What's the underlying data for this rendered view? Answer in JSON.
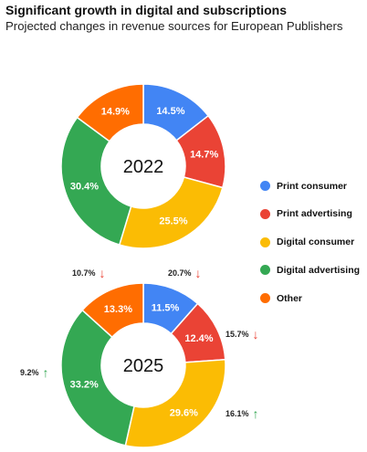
{
  "header": {
    "title": "Significant growth in digital and subscriptions",
    "subtitle": "Projected changes in revenue sources for European Publishers"
  },
  "chart_data": [
    {
      "type": "donut",
      "center_label": "2022",
      "series": [
        {
          "name": "Print consumer",
          "value": 14.5,
          "label": "14.5%",
          "color": "#4285F4"
        },
        {
          "name": "Print advertising",
          "value": 14.7,
          "label": "14.7%",
          "color": "#EA4335"
        },
        {
          "name": "Digital consumer",
          "value": 25.5,
          "label": "25.5%",
          "color": "#FBBC04"
        },
        {
          "name": "Digital advertising",
          "value": 30.4,
          "label": "30.4%",
          "color": "#34A853"
        },
        {
          "name": "Other",
          "value": 14.9,
          "label": "14.9%",
          "color": "#FF6D01"
        }
      ]
    },
    {
      "type": "donut",
      "center_label": "2025",
      "series": [
        {
          "name": "Print consumer",
          "value": 11.5,
          "label": "11.5%",
          "color": "#4285F4",
          "change": "20.7%",
          "direction": "down"
        },
        {
          "name": "Print advertising",
          "value": 12.4,
          "label": "12.4%",
          "color": "#EA4335",
          "change": "15.7%",
          "direction": "down"
        },
        {
          "name": "Digital consumer",
          "value": 29.6,
          "label": "29.6%",
          "color": "#FBBC04",
          "change": "16.1%",
          "direction": "up"
        },
        {
          "name": "Digital advertising",
          "value": 33.2,
          "label": "33.2%",
          "color": "#34A853",
          "change": "9.2%",
          "direction": "up"
        },
        {
          "name": "Other",
          "value": 13.3,
          "label": "13.3%",
          "color": "#FF6D01",
          "change": "10.7%",
          "direction": "down"
        }
      ]
    }
  ],
  "legend": {
    "placement": "right",
    "items": [
      {
        "label": "Print consumer",
        "color": "#4285F4"
      },
      {
        "label": "Print advertising",
        "color": "#EA4335"
      },
      {
        "label": "Digital consumer",
        "color": "#FBBC04"
      },
      {
        "label": "Digital advertising",
        "color": "#34A853"
      },
      {
        "label": "Other",
        "color": "#FF6D01"
      }
    ]
  },
  "arrow_colors": {
    "up": "#34A853",
    "down": "#EA4335"
  },
  "arrow_glyphs": {
    "up": "↑",
    "down": "↓"
  }
}
